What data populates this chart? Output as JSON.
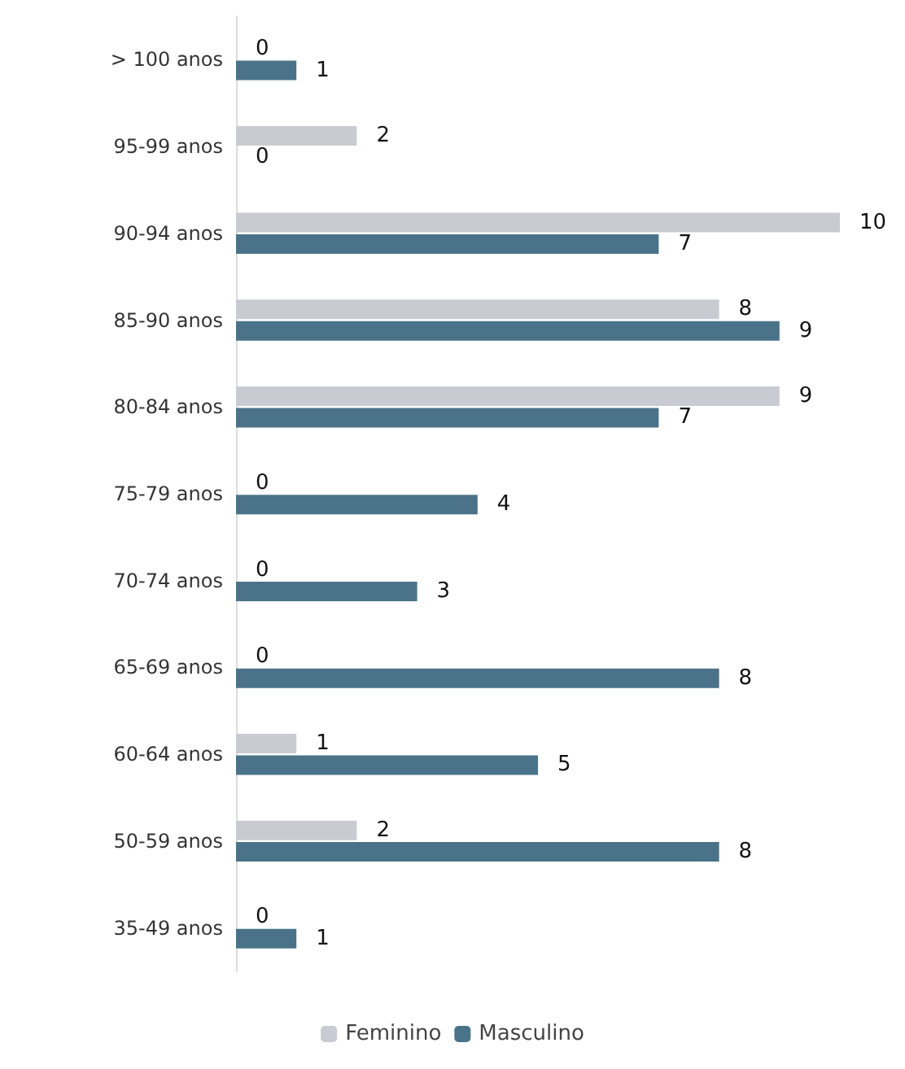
{
  "chart_data": {
    "type": "bar",
    "orientation": "horizontal",
    "categories": [
      "> 100 anos",
      "95-99 anos",
      "90-94 anos",
      "85-90 anos",
      "80-84 anos",
      "75-79 anos",
      "70-74 anos",
      "65-69 anos",
      "60-64 anos",
      "50-59 anos",
      "35-49 anos"
    ],
    "series": [
      {
        "name": "Feminino",
        "color": "#c8ccd2",
        "values": [
          0,
          2,
          10,
          8,
          9,
          0,
          0,
          0,
          1,
          2,
          0
        ]
      },
      {
        "name": "Masculino",
        "color": "#4a7389",
        "values": [
          1,
          0,
          7,
          9,
          7,
          4,
          3,
          8,
          5,
          8,
          1
        ]
      }
    ],
    "data_labels": true,
    "legend": "bottom"
  }
}
